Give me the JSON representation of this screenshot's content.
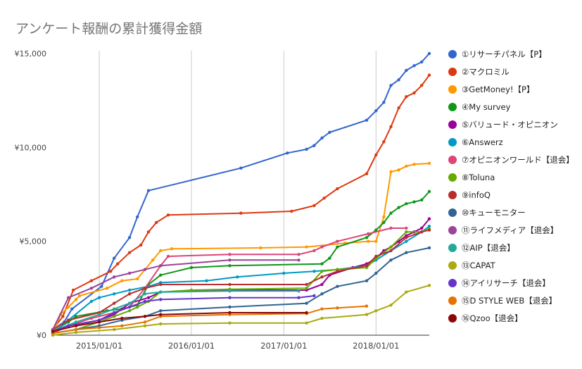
{
  "chart_data": {
    "type": "line",
    "title": "アンケート報酬の累計獲得金額",
    "xlabel": "",
    "ylabel": "",
    "xlim": [
      "2014-07-01",
      "2018-07-31"
    ],
    "ylim": [
      0,
      15000
    ],
    "y_ticks": [
      0,
      5000,
      10000,
      15000
    ],
    "y_tick_labels": [
      "¥0",
      "¥5,000",
      "¥10,000",
      "¥15,000"
    ],
    "x_ticks": [
      "2015-01-01",
      "2016-01-01",
      "2017-01-01",
      "2018-01-01"
    ],
    "x_tick_labels": [
      "2015/01/01",
      "2016/01/01",
      "2017/01/01",
      "2018/01/01"
    ],
    "grid": "vertical",
    "legend_position": "right",
    "series": [
      {
        "name": "①リサーチパネル【P】",
        "color": "#3366cc",
        "points": [
          [
            "2014-07-01",
            300
          ],
          [
            "2014-08-15",
            700
          ],
          [
            "2014-09-15",
            1400
          ],
          [
            "2015-01-10",
            2600
          ],
          [
            "2015-03-01",
            4100
          ],
          [
            "2015-05-01",
            5200
          ],
          [
            "2015-06-01",
            6300
          ],
          [
            "2015-07-15",
            7700
          ],
          [
            "2016-07-15",
            8900
          ],
          [
            "2017-01-15",
            9700
          ],
          [
            "2017-04-01",
            9900
          ],
          [
            "2017-05-01",
            10100
          ],
          [
            "2017-06-01",
            10500
          ],
          [
            "2017-07-01",
            10800
          ],
          [
            "2017-11-25",
            11450
          ],
          [
            "2018-01-01",
            11950
          ],
          [
            "2018-02-01",
            12400
          ],
          [
            "2018-03-01",
            13300
          ],
          [
            "2018-04-01",
            13600
          ],
          [
            "2018-05-01",
            14100
          ],
          [
            "2018-06-01",
            14350
          ],
          [
            "2018-07-01",
            14550
          ],
          [
            "2018-07-31",
            15000
          ]
        ]
      },
      {
        "name": "②マクロミル",
        "color": "#dc3912",
        "points": [
          [
            "2014-07-01",
            300
          ],
          [
            "2014-08-10",
            1000
          ],
          [
            "2014-09-20",
            2400
          ],
          [
            "2014-12-01",
            2900
          ],
          [
            "2015-02-15",
            3400
          ],
          [
            "2015-03-15",
            3800
          ],
          [
            "2015-05-01",
            4400
          ],
          [
            "2015-06-15",
            4800
          ],
          [
            "2015-07-15",
            5500
          ],
          [
            "2015-08-15",
            6000
          ],
          [
            "2015-10-01",
            6400
          ],
          [
            "2016-07-15",
            6500
          ],
          [
            "2017-02-01",
            6600
          ],
          [
            "2017-05-01",
            6900
          ],
          [
            "2017-06-10",
            7300
          ],
          [
            "2017-08-01",
            7800
          ],
          [
            "2017-11-25",
            8600
          ],
          [
            "2018-01-01",
            9600
          ],
          [
            "2018-02-01",
            10300
          ],
          [
            "2018-03-01",
            11100
          ],
          [
            "2018-04-01",
            12100
          ],
          [
            "2018-05-01",
            12700
          ],
          [
            "2018-06-01",
            12900
          ],
          [
            "2018-07-01",
            13300
          ],
          [
            "2018-07-31",
            13850
          ]
        ]
      },
      {
        "name": "③GetMoney!【P】",
        "color": "#ff9900",
        "points": [
          [
            "2014-07-01",
            100
          ],
          [
            "2014-08-01",
            1100
          ],
          [
            "2014-09-01",
            1500
          ],
          [
            "2014-10-01",
            1900
          ],
          [
            "2014-10-15",
            2100
          ],
          [
            "2015-02-01",
            2500
          ],
          [
            "2015-04-01",
            2900
          ],
          [
            "2015-06-01",
            3000
          ],
          [
            "2015-08-01",
            4000
          ],
          [
            "2015-09-01",
            4500
          ],
          [
            "2015-10-15",
            4600
          ],
          [
            "2016-10-01",
            4650
          ],
          [
            "2017-04-01",
            4700
          ],
          [
            "2017-09-01",
            4900
          ],
          [
            "2017-12-01",
            5000
          ],
          [
            "2018-01-01",
            5000
          ],
          [
            "2018-02-01",
            6300
          ],
          [
            "2018-03-01",
            8700
          ],
          [
            "2018-04-01",
            8800
          ],
          [
            "2018-05-01",
            9000
          ],
          [
            "2018-06-01",
            9100
          ],
          [
            "2018-07-31",
            9150
          ]
        ]
      },
      {
        "name": "④My survey",
        "color": "#109618",
        "points": [
          [
            "2014-07-01",
            200
          ],
          [
            "2014-09-01",
            700
          ],
          [
            "2014-10-01",
            1000
          ],
          [
            "2015-02-01",
            1300
          ],
          [
            "2015-04-01",
            1400
          ],
          [
            "2015-06-01",
            1600
          ],
          [
            "2015-07-15",
            2700
          ],
          [
            "2015-09-01",
            3200
          ],
          [
            "2016-01-01",
            3600
          ],
          [
            "2016-06-01",
            3700
          ],
          [
            "2017-06-01",
            3800
          ],
          [
            "2017-07-01",
            4100
          ],
          [
            "2017-08-01",
            4700
          ],
          [
            "2017-11-25",
            5200
          ],
          [
            "2018-01-01",
            5600
          ],
          [
            "2018-02-01",
            6000
          ],
          [
            "2018-03-01",
            6500
          ],
          [
            "2018-04-01",
            6800
          ],
          [
            "2018-05-01",
            7000
          ],
          [
            "2018-06-01",
            7100
          ],
          [
            "2018-07-01",
            7200
          ],
          [
            "2018-07-31",
            7650
          ]
        ]
      },
      {
        "name": "⑤バリュード・オピニオン",
        "color": "#990099",
        "points": [
          [
            "2014-07-01",
            200
          ],
          [
            "2014-09-01",
            500
          ],
          [
            "2015-01-01",
            800
          ],
          [
            "2015-03-01",
            1100
          ],
          [
            "2015-05-01",
            1700
          ],
          [
            "2015-07-15",
            2000
          ],
          [
            "2015-09-01",
            2300
          ],
          [
            "2016-06-01",
            2400
          ],
          [
            "2017-04-01",
            2400
          ],
          [
            "2017-06-01",
            2700
          ],
          [
            "2017-07-01",
            3200
          ],
          [
            "2017-10-01",
            3600
          ],
          [
            "2017-11-25",
            3800
          ],
          [
            "2018-01-01",
            4100
          ],
          [
            "2018-02-01",
            4500
          ],
          [
            "2018-03-01",
            4700
          ],
          [
            "2018-04-01",
            5000
          ],
          [
            "2018-05-01",
            5300
          ],
          [
            "2018-06-01",
            5500
          ],
          [
            "2018-07-01",
            5700
          ],
          [
            "2018-07-31",
            6200
          ]
        ]
      },
      {
        "name": "⑥Answerz",
        "color": "#0099c6",
        "points": [
          [
            "2014-07-01",
            100
          ],
          [
            "2014-09-01",
            800
          ],
          [
            "2014-12-01",
            1800
          ],
          [
            "2015-01-01",
            2000
          ],
          [
            "2015-03-01",
            2200
          ],
          [
            "2015-05-01",
            2400
          ],
          [
            "2015-07-15",
            2600
          ],
          [
            "2015-09-01",
            2800
          ],
          [
            "2016-03-01",
            2900
          ],
          [
            "2016-07-01",
            3100
          ],
          [
            "2017-01-01",
            3300
          ],
          [
            "2017-05-01",
            3400
          ],
          [
            "2017-08-01",
            3500
          ],
          [
            "2017-11-25",
            3700
          ],
          [
            "2018-01-01",
            4000
          ],
          [
            "2018-03-01",
            4500
          ],
          [
            "2018-05-01",
            5000
          ],
          [
            "2018-07-01",
            5500
          ],
          [
            "2018-07-31",
            5800
          ]
        ]
      },
      {
        "name": "⑦オピニオンワールド【退会】",
        "color": "#dd4477",
        "points": [
          [
            "2014-07-01",
            100
          ],
          [
            "2014-09-01",
            500
          ],
          [
            "2014-12-01",
            900
          ],
          [
            "2015-03-01",
            1200
          ],
          [
            "2015-05-01",
            1500
          ],
          [
            "2015-07-01",
            2500
          ],
          [
            "2015-09-01",
            3700
          ],
          [
            "2015-10-01",
            4200
          ],
          [
            "2016-06-01",
            4300
          ],
          [
            "2017-03-01",
            4300
          ],
          [
            "2017-05-01",
            4500
          ],
          [
            "2017-06-01",
            4700
          ],
          [
            "2017-08-01",
            5000
          ],
          [
            "2017-12-01",
            5400
          ],
          [
            "2018-03-01",
            5700
          ],
          [
            "2018-05-01",
            5700
          ]
        ]
      },
      {
        "name": "⑧Toluna",
        "color": "#66aa00",
        "points": [
          [
            "2014-07-01",
            100
          ],
          [
            "2014-10-01",
            300
          ],
          [
            "2015-01-01",
            700
          ],
          [
            "2015-03-01",
            1000
          ],
          [
            "2015-05-01",
            1300
          ],
          [
            "2015-06-01",
            1500
          ],
          [
            "2015-07-15",
            1800
          ],
          [
            "2015-09-01",
            2300
          ],
          [
            "2016-01-01",
            2400
          ],
          [
            "2016-06-01",
            2450
          ],
          [
            "2017-04-01",
            2500
          ],
          [
            "2017-06-01",
            3400
          ],
          [
            "2017-08-01",
            3500
          ],
          [
            "2017-11-25",
            3600
          ],
          [
            "2018-01-01",
            4100
          ],
          [
            "2018-03-01",
            4700
          ],
          [
            "2018-05-01",
            5500
          ],
          [
            "2018-07-01",
            5500
          ],
          [
            "2018-07-31",
            5650
          ]
        ]
      },
      {
        "name": "⑨infoQ",
        "color": "#b82e2e",
        "points": [
          [
            "2014-07-01",
            300
          ],
          [
            "2014-09-01",
            800
          ],
          [
            "2015-01-01",
            1200
          ],
          [
            "2015-03-01",
            1700
          ],
          [
            "2015-05-01",
            2200
          ],
          [
            "2015-07-01",
            2500
          ],
          [
            "2015-09-01",
            2700
          ],
          [
            "2016-06-01",
            2700
          ],
          [
            "2017-04-01",
            2700
          ],
          [
            "2017-06-01",
            3100
          ],
          [
            "2017-08-01",
            3400
          ],
          [
            "2017-11-25",
            3700
          ],
          [
            "2018-01-01",
            4200
          ],
          [
            "2018-03-01",
            4500
          ],
          [
            "2018-05-01",
            5200
          ],
          [
            "2018-07-01",
            5500
          ],
          [
            "2018-07-31",
            5600
          ]
        ]
      },
      {
        "name": "⑩キューモニター",
        "color": "#316395",
        "points": [
          [
            "2014-07-01",
            100
          ],
          [
            "2014-10-01",
            300
          ],
          [
            "2015-01-01",
            500
          ],
          [
            "2015-04-01",
            800
          ],
          [
            "2015-07-01",
            1000
          ],
          [
            "2015-09-01",
            1300
          ],
          [
            "2016-06-01",
            1500
          ],
          [
            "2017-04-01",
            1700
          ],
          [
            "2017-06-01",
            2200
          ],
          [
            "2017-08-01",
            2600
          ],
          [
            "2017-11-25",
            2900
          ],
          [
            "2018-01-01",
            3300
          ],
          [
            "2018-03-01",
            4000
          ],
          [
            "2018-05-01",
            4400
          ],
          [
            "2018-07-31",
            4650
          ]
        ]
      },
      {
        "name": "⑪ライフメディア【退会】",
        "color": "#994499",
        "points": [
          [
            "2014-07-01",
            300
          ],
          [
            "2014-09-01",
            2000
          ],
          [
            "2014-12-01",
            2500
          ],
          [
            "2015-03-01",
            3100
          ],
          [
            "2015-05-01",
            3300
          ],
          [
            "2015-07-01",
            3500
          ],
          [
            "2015-09-01",
            3700
          ],
          [
            "2016-06-01",
            4000
          ],
          [
            "2017-03-01",
            4000
          ]
        ]
      },
      {
        "name": "⑫AIP【退会】",
        "color": "#22aa99",
        "points": [
          [
            "2014-07-01",
            200
          ],
          [
            "2014-10-01",
            700
          ],
          [
            "2015-01-01",
            1100
          ],
          [
            "2015-03-01",
            1400
          ],
          [
            "2015-05-01",
            1700
          ],
          [
            "2015-07-01",
            2200
          ],
          [
            "2015-09-01",
            2300
          ],
          [
            "2016-06-01",
            2350
          ],
          [
            "2017-03-01",
            2350
          ]
        ]
      },
      {
        "name": "⑬CAPAT",
        "color": "#aaaa11",
        "points": [
          [
            "2014-07-01",
            0
          ],
          [
            "2014-10-01",
            150
          ],
          [
            "2015-03-01",
            300
          ],
          [
            "2015-07-01",
            500
          ],
          [
            "2015-09-01",
            600
          ],
          [
            "2016-06-01",
            650
          ],
          [
            "2017-04-01",
            650
          ],
          [
            "2017-06-01",
            900
          ],
          [
            "2017-11-25",
            1100
          ],
          [
            "2018-01-01",
            1300
          ],
          [
            "2018-03-01",
            1600
          ],
          [
            "2018-05-01",
            2300
          ],
          [
            "2018-07-31",
            2650
          ]
        ]
      },
      {
        "name": "⑭アイリサーチ【退会】",
        "color": "#6633cc",
        "points": [
          [
            "2014-07-01",
            200
          ],
          [
            "2014-09-01",
            500
          ],
          [
            "2015-01-01",
            800
          ],
          [
            "2015-03-01",
            1200
          ],
          [
            "2015-05-01",
            1500
          ],
          [
            "2015-07-01",
            1800
          ],
          [
            "2015-09-01",
            1900
          ],
          [
            "2016-06-01",
            2000
          ],
          [
            "2017-03-01",
            2000
          ],
          [
            "2017-05-01",
            2100
          ]
        ]
      },
      {
        "name": "⑮D STYLE WEB【退会】",
        "color": "#e67300",
        "points": [
          [
            "2014-07-01",
            100
          ],
          [
            "2014-10-01",
            300
          ],
          [
            "2015-01-01",
            400
          ],
          [
            "2015-04-01",
            500
          ],
          [
            "2015-07-01",
            700
          ],
          [
            "2015-09-01",
            1000
          ],
          [
            "2016-06-01",
            1100
          ],
          [
            "2017-04-01",
            1150
          ],
          [
            "2017-06-01",
            1400
          ],
          [
            "2017-08-01",
            1450
          ],
          [
            "2017-11-25",
            1550
          ]
        ]
      },
      {
        "name": "⑯Qzoo【退会】",
        "color": "#8b0707",
        "points": [
          [
            "2014-07-01",
            200
          ],
          [
            "2014-10-01",
            500
          ],
          [
            "2015-01-01",
            700
          ],
          [
            "2015-04-01",
            900
          ],
          [
            "2015-07-01",
            1000
          ],
          [
            "2015-09-01",
            1100
          ],
          [
            "2016-06-01",
            1200
          ],
          [
            "2017-04-01",
            1200
          ]
        ]
      }
    ]
  }
}
